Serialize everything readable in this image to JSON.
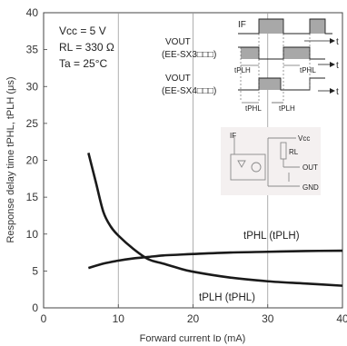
{
  "chart_data": {
    "type": "line",
    "xlabel": "Forward current Iᴅ (mA)",
    "ylabel": "Response delay time tPHL, tPLH (μs)",
    "xlim": [
      0,
      40
    ],
    "ylim": [
      0,
      40
    ],
    "x_ticks": [
      "0",
      "10",
      "20",
      "30",
      "40"
    ],
    "y_ticks": [
      "0",
      "5",
      "10",
      "15",
      "20",
      "25",
      "30",
      "35",
      "40"
    ],
    "grid": "vertical",
    "series": [
      {
        "name": "tPHL (tPLH)",
        "x": [
          6,
          8,
          10,
          12,
          14,
          16,
          18,
          20,
          25,
          30,
          35,
          40
        ],
        "y": [
          5.4,
          6.0,
          6.4,
          6.7,
          6.9,
          7.1,
          7.2,
          7.3,
          7.5,
          7.6,
          7.7,
          7.75
        ]
      },
      {
        "name": "tPLH (tPHL)",
        "x": [
          6,
          7,
          8,
          9,
          10,
          12,
          14,
          16,
          18,
          20,
          25,
          30,
          35,
          40
        ],
        "y": [
          21,
          17,
          13,
          11,
          9.8,
          8.0,
          6.6,
          6.0,
          5.4,
          4.9,
          4.1,
          3.6,
          3.3,
          3.0
        ]
      }
    ],
    "annotations": {
      "label_upper_curve": "tPHL (tPLH)",
      "label_lower_curve": "tPLH (tPHL)"
    },
    "conditions": {
      "vcc": "Vcc = 5 V",
      "rl": "RL = 330 Ω",
      "ta": "Ta = 25°C"
    }
  },
  "timing_diagram": {
    "if_label": "IF",
    "t_label": "t",
    "vout1_label": "VOUT",
    "vout1_model": "(EE-SX3□□□)",
    "vout2_label": "VOUT",
    "vout2_model": "(EE-SX4□□□)",
    "tplh_label": "tPLH",
    "tphl_label": "tPHL"
  },
  "circuit": {
    "out_label": "OUT",
    "gnd_label": "GND",
    "vcc_label": "Vcc",
    "rl_label": "RL",
    "if_label": "IF"
  },
  "colors": {
    "curve": "#1a1a1a",
    "grid": "#9a9a9a",
    "pulse_fill": "#a8a8a8",
    "circuit_bg": "#f4f0f0"
  }
}
